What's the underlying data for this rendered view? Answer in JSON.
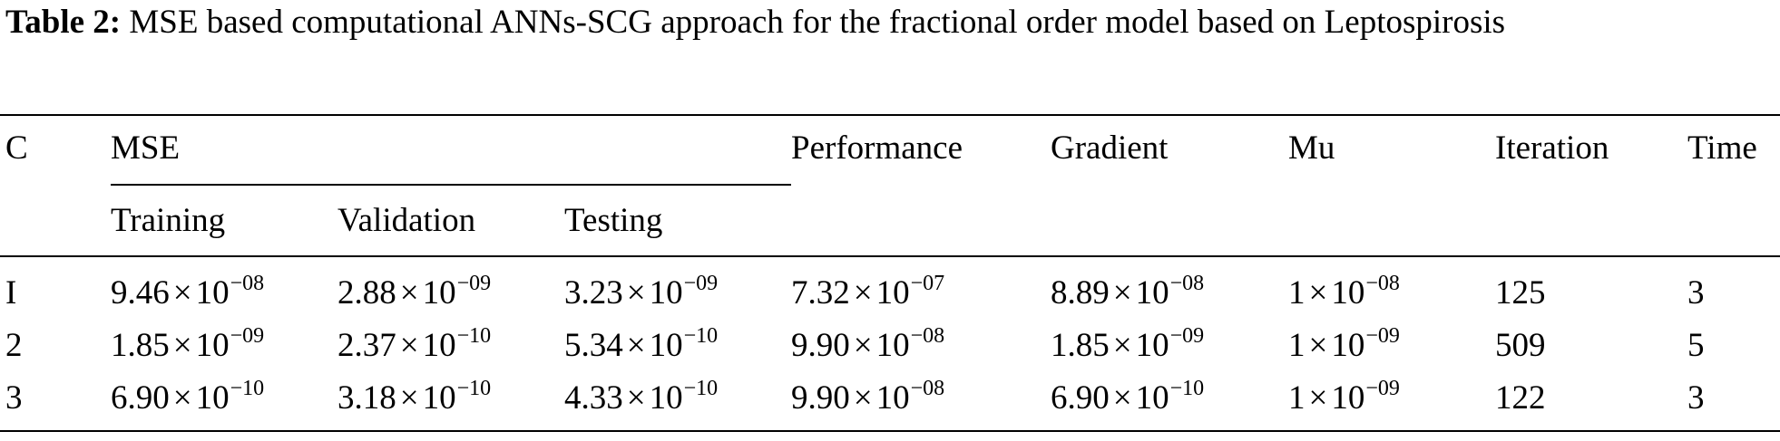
{
  "caption": {
    "label": "Table 2:",
    "text": " MSE based computational ANNs-SCG approach for the fractional order model based on Leptospirosis"
  },
  "table": {
    "headers": {
      "c": "C",
      "mse": "MSE",
      "performance": "Performance",
      "gradient": "Gradient",
      "mu": "Mu",
      "iteration": "Iteration",
      "time": "Time"
    },
    "subheaders": {
      "training": "Training",
      "validation": "Validation",
      "testing": "Testing"
    },
    "rows": [
      {
        "c": "I",
        "training": {
          "m": "9.46",
          "e": "−08"
        },
        "validation": {
          "m": "2.88",
          "e": "−09"
        },
        "testing": {
          "m": "3.23",
          "e": "−09"
        },
        "performance": {
          "m": "7.32",
          "e": "−07"
        },
        "gradient": {
          "m": "8.89",
          "e": "−08"
        },
        "mu": {
          "m": "1",
          "e": "−08"
        },
        "iteration": "125",
        "time": "3"
      },
      {
        "c": "2",
        "training": {
          "m": "1.85",
          "e": "−09"
        },
        "validation": {
          "m": "2.37",
          "e": "−10"
        },
        "testing": {
          "m": "5.34",
          "e": "−10"
        },
        "performance": {
          "m": "9.90",
          "e": "−08"
        },
        "gradient": {
          "m": "1.85",
          "e": "−09"
        },
        "mu": {
          "m": "1",
          "e": "−09"
        },
        "iteration": "509",
        "time": "5"
      },
      {
        "c": "3",
        "training": {
          "m": "6.90",
          "e": "−10"
        },
        "validation": {
          "m": "3.18",
          "e": "−10"
        },
        "testing": {
          "m": "4.33",
          "e": "−10"
        },
        "performance": {
          "m": "9.90",
          "e": "−08"
        },
        "gradient": {
          "m": "6.90",
          "e": "−10"
        },
        "mu": {
          "m": "1",
          "e": "−09"
        },
        "iteration": "122",
        "time": "3"
      }
    ],
    "times_symbol": "×",
    "base": "10"
  }
}
